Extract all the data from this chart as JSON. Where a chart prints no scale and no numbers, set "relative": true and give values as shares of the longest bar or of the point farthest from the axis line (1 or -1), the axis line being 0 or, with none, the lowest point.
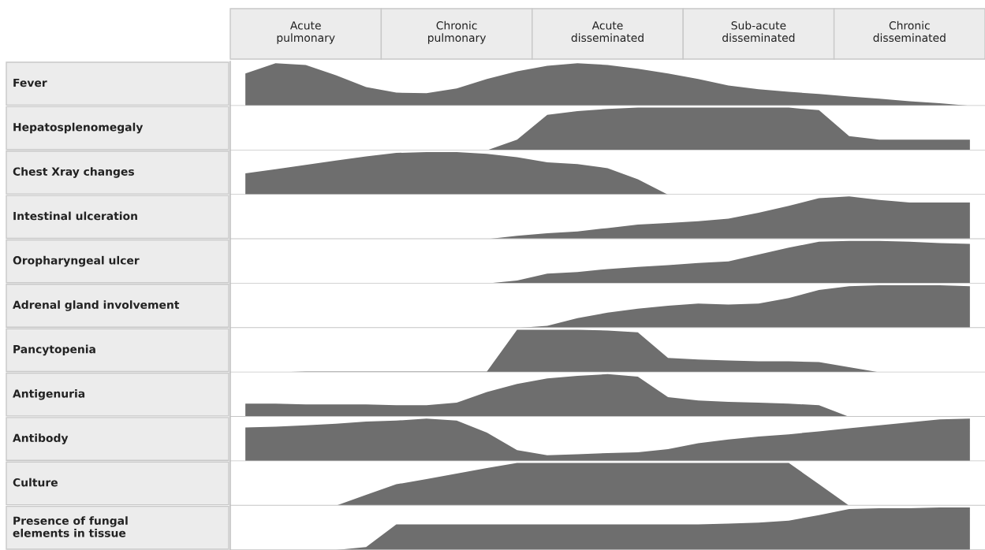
{
  "chart_data": [
    {
      "type": "area",
      "relative": true,
      "tick_labels": "x",
      "ylabel": "Fever",
      "color": "#6e6e6e",
      "categories": [
        null,
        null,
        "Acute\npulmonary",
        null,
        null,
        null,
        null,
        "Chronic\npulmonary",
        null,
        null,
        null,
        null,
        "Acute\ndisseminated",
        null,
        null,
        null,
        null,
        "Sub-acute\ndisseminated",
        null,
        null,
        null,
        null,
        "Chronic\ndisseminated",
        null,
        null
      ],
      "values": [
        0.76,
        1,
        0.96,
        0.72,
        0.44,
        0.31,
        0.3,
        0.41,
        0.63,
        0.81,
        0.94,
        1,
        0.96,
        0.87,
        0.76,
        0.63,
        0.48,
        0.39,
        0.33,
        0.28,
        0.22,
        0.17,
        0.11,
        0.06,
        0
      ]
    },
    {
      "type": "area",
      "relative": true,
      "tick_labels": false,
      "ylabel": "Hepatosplenomegaly",
      "color": "#6e6e6e",
      "categories": [
        null,
        null,
        null,
        null,
        null,
        null,
        null,
        null,
        null,
        null,
        null,
        null,
        null,
        null,
        null,
        null,
        null,
        null,
        null,
        null,
        null,
        null,
        null,
        null,
        null
      ],
      "values": [
        0,
        0,
        0,
        0,
        0,
        0,
        0,
        0,
        0,
        0.25,
        0.83,
        0.92,
        0.97,
        1,
        1,
        1,
        1,
        1,
        1,
        0.94,
        0.33,
        0.25,
        0.25,
        0.25,
        0.25
      ]
    },
    {
      "type": "area",
      "relative": true,
      "tick_labels": false,
      "ylabel": "Chest Xray changes",
      "color": "#6e6e6e",
      "categories": [
        null,
        null,
        null,
        null,
        null,
        null,
        null,
        null,
        null,
        null,
        null,
        null,
        null,
        null,
        null,
        null,
        null,
        null,
        null,
        null,
        null,
        null,
        null,
        null,
        null
      ],
      "values": [
        0.5,
        0.6,
        0.7,
        0.8,
        0.9,
        0.98,
        1,
        1,
        0.96,
        0.88,
        0.76,
        0.72,
        0.62,
        0.36,
        0,
        0,
        0,
        0,
        0,
        0,
        0,
        0,
        0,
        0,
        0
      ]
    },
    {
      "type": "area",
      "relative": true,
      "tick_labels": false,
      "ylabel": "Intestinal ulceration",
      "color": "#6e6e6e",
      "categories": [
        null,
        null,
        null,
        null,
        null,
        null,
        null,
        null,
        null,
        null,
        null,
        null,
        null,
        null,
        null,
        null,
        null,
        null,
        null,
        null,
        null,
        null,
        null,
        null,
        null
      ],
      "values": [
        0,
        0,
        0,
        0,
        0,
        0,
        0,
        0,
        0,
        0.08,
        0.14,
        0.18,
        0.26,
        0.34,
        0.38,
        0.42,
        0.48,
        0.62,
        0.78,
        0.96,
        1,
        0.92,
        0.86,
        0.86,
        0.86
      ]
    },
    {
      "type": "area",
      "relative": true,
      "tick_labels": false,
      "ylabel": "Oropharyngeal ulcer",
      "color": "#6e6e6e",
      "categories": [
        null,
        null,
        null,
        null,
        null,
        null,
        null,
        null,
        null,
        null,
        null,
        null,
        null,
        null,
        null,
        null,
        null,
        null,
        null,
        null,
        null,
        null,
        null,
        null,
        null
      ],
      "values": [
        0,
        0,
        0,
        0,
        0,
        0,
        0,
        0,
        0,
        0.07,
        0.23,
        0.27,
        0.34,
        0.39,
        0.43,
        0.48,
        0.52,
        0.68,
        0.84,
        0.98,
        1,
        1,
        0.98,
        0.95,
        0.93
      ]
    },
    {
      "type": "area",
      "relative": true,
      "tick_labels": false,
      "ylabel": "Adrenal gland involvement",
      "color": "#6e6e6e",
      "categories": [
        null,
        null,
        null,
        null,
        null,
        null,
        null,
        null,
        null,
        null,
        null,
        null,
        null,
        null,
        null,
        null,
        null,
        null,
        null,
        null,
        null,
        null,
        null,
        null,
        null
      ],
      "values": [
        0,
        0,
        0,
        0,
        0,
        0,
        0,
        0,
        0,
        0,
        0.05,
        0.23,
        0.36,
        0.45,
        0.52,
        0.57,
        0.55,
        0.57,
        0.7,
        0.89,
        0.98,
        1,
        1,
        1,
        0.98
      ]
    },
    {
      "type": "area",
      "relative": true,
      "tick_labels": false,
      "ylabel": "Pancytopenia",
      "color": "#6e6e6e",
      "categories": [
        null,
        null,
        null,
        null,
        null,
        null,
        null,
        null,
        null,
        null,
        null,
        null,
        null,
        null,
        null,
        null,
        null,
        null,
        null,
        null,
        null,
        null,
        null,
        null,
        null
      ],
      "values": [
        0,
        0,
        0.02,
        0.02,
        0.02,
        0.02,
        0.02,
        0.02,
        0.02,
        1,
        1,
        1,
        0.98,
        0.94,
        0.34,
        0.3,
        0.28,
        0.26,
        0.26,
        0.24,
        0.12,
        0,
        0,
        0,
        0
      ]
    },
    {
      "type": "area",
      "relative": true,
      "tick_labels": false,
      "ylabel": "Antigenuria",
      "color": "#6e6e6e",
      "categories": [
        null,
        null,
        null,
        null,
        null,
        null,
        null,
        null,
        null,
        null,
        null,
        null,
        null,
        null,
        null,
        null,
        null,
        null,
        null,
        null,
        null,
        null,
        null,
        null,
        null
      ],
      "values": [
        0.31,
        0.31,
        0.29,
        0.29,
        0.29,
        0.27,
        0.27,
        0.33,
        0.58,
        0.77,
        0.9,
        0.96,
        1,
        0.94,
        0.46,
        0.38,
        0.35,
        0.33,
        0.31,
        0.27,
        0,
        0,
        0,
        0,
        0
      ]
    },
    {
      "type": "area",
      "relative": true,
      "tick_labels": false,
      "ylabel": "Antibody",
      "color": "#6e6e6e",
      "categories": [
        null,
        null,
        null,
        null,
        null,
        null,
        null,
        null,
        null,
        null,
        null,
        null,
        null,
        null,
        null,
        null,
        null,
        null,
        null,
        null,
        null,
        null,
        null,
        null,
        null
      ],
      "values": [
        0.79,
        0.81,
        0.84,
        0.88,
        0.93,
        0.95,
        1,
        0.95,
        0.67,
        0.26,
        0.14,
        0.16,
        0.19,
        0.21,
        0.28,
        0.42,
        0.51,
        0.58,
        0.63,
        0.7,
        0.77,
        0.84,
        0.91,
        0.98,
        1
      ]
    },
    {
      "type": "area",
      "relative": true,
      "tick_labels": false,
      "ylabel": "Culture",
      "color": "#6e6e6e",
      "categories": [
        null,
        null,
        null,
        null,
        null,
        null,
        null,
        null,
        null,
        null,
        null,
        null,
        null,
        null,
        null,
        null,
        null,
        null,
        null,
        null,
        null,
        null,
        null,
        null,
        null
      ],
      "values": [
        0,
        0,
        0,
        0,
        0.25,
        0.5,
        0.62,
        0.75,
        0.88,
        1,
        1,
        1,
        1,
        1,
        1,
        1,
        1,
        1,
        1,
        0.5,
        0,
        0,
        0,
        0,
        0
      ]
    },
    {
      "type": "area",
      "relative": true,
      "tick_labels": false,
      "ylabel": "Presence of fungal\nelements in tissue",
      "color": "#6e6e6e",
      "categories": [
        null,
        null,
        null,
        null,
        null,
        null,
        null,
        null,
        null,
        null,
        null,
        null,
        null,
        null,
        null,
        null,
        null,
        null,
        null,
        null,
        null,
        null,
        null,
        null,
        null
      ],
      "values": [
        0,
        0,
        0,
        0,
        0.07,
        0.6,
        0.6,
        0.6,
        0.6,
        0.6,
        0.6,
        0.6,
        0.6,
        0.6,
        0.6,
        0.6,
        0.62,
        0.64,
        0.69,
        0.82,
        0.96,
        0.98,
        0.98,
        1,
        1
      ]
    }
  ]
}
